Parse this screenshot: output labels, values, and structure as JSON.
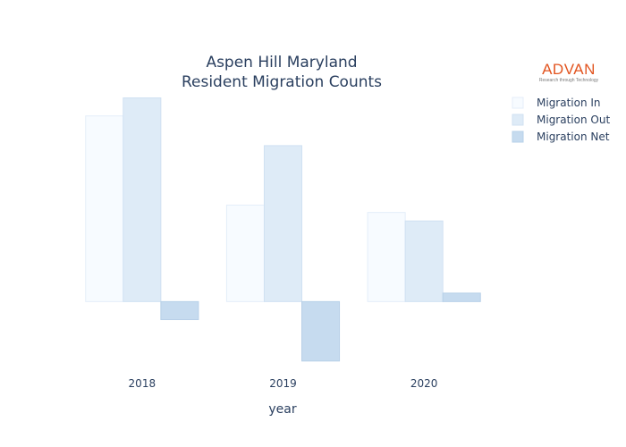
{
  "logo": {
    "text": "ADVAN",
    "tagline": "Research through Technology",
    "color": "#e2541f"
  },
  "chart_data": {
    "type": "bar",
    "title": [
      "Aspen Hill Maryland",
      "Resident Migration Counts"
    ],
    "xlabel": "year",
    "ylabel": "",
    "categories": [
      "2018",
      "2019",
      "2020"
    ],
    "series": [
      {
        "name": "Migration In",
        "values": [
          8750,
          4550,
          4200
        ],
        "color": "#f7fbff",
        "stroke": "#e4eef9"
      },
      {
        "name": "Migration Out",
        "values": [
          9600,
          7350,
          3800
        ],
        "color": "#deebf7",
        "stroke": "#d0e1f2"
      },
      {
        "name": "Migration Net",
        "values": [
          -850,
          -2800,
          400
        ],
        "color": "#c6dbef",
        "stroke": "#b7d0e8"
      }
    ],
    "ylim": [
      -2850,
      10000
    ],
    "grid": false,
    "legend": "top-right"
  }
}
